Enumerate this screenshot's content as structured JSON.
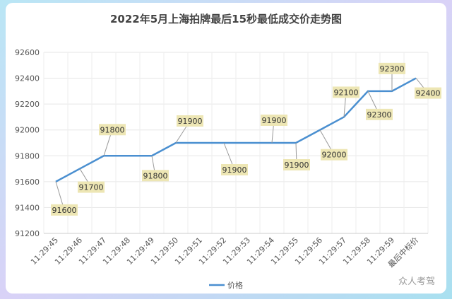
{
  "chart_data": {
    "type": "line",
    "title": "2022年5月上海拍牌最后15秒最低成交价走势图",
    "categories": [
      "11:29:45",
      "11:29:46",
      "11:29:47",
      "11:29:48",
      "11:29:49",
      "11:29:50",
      "11:29:51",
      "11:29:52",
      "11:29:53",
      "11:29:54",
      "11:29:55",
      "11:29:56",
      "11:29:57",
      "11:29:58",
      "11:29:59",
      "最后中标价"
    ],
    "series": [
      {
        "name": "价格",
        "color": "#4a8fd0",
        "values": [
          91600,
          91700,
          91800,
          91800,
          91800,
          91900,
          91900,
          91900,
          91900,
          91900,
          91900,
          92000,
          92100,
          92300,
          92300,
          92400
        ],
        "value_labels": [
          "91600",
          "91700",
          "91800",
          null,
          "91800",
          "91900",
          null,
          "91900",
          null,
          "91900",
          "91900",
          "92000",
          "92100",
          "92300",
          "92300",
          "92400"
        ]
      }
    ],
    "ylim": [
      91200,
      92600
    ],
    "yticks": [
      91200,
      91400,
      91600,
      91800,
      92000,
      92200,
      92400,
      92600
    ],
    "grid": true,
    "legend": "bottom",
    "watermark": "众人考驾"
  }
}
